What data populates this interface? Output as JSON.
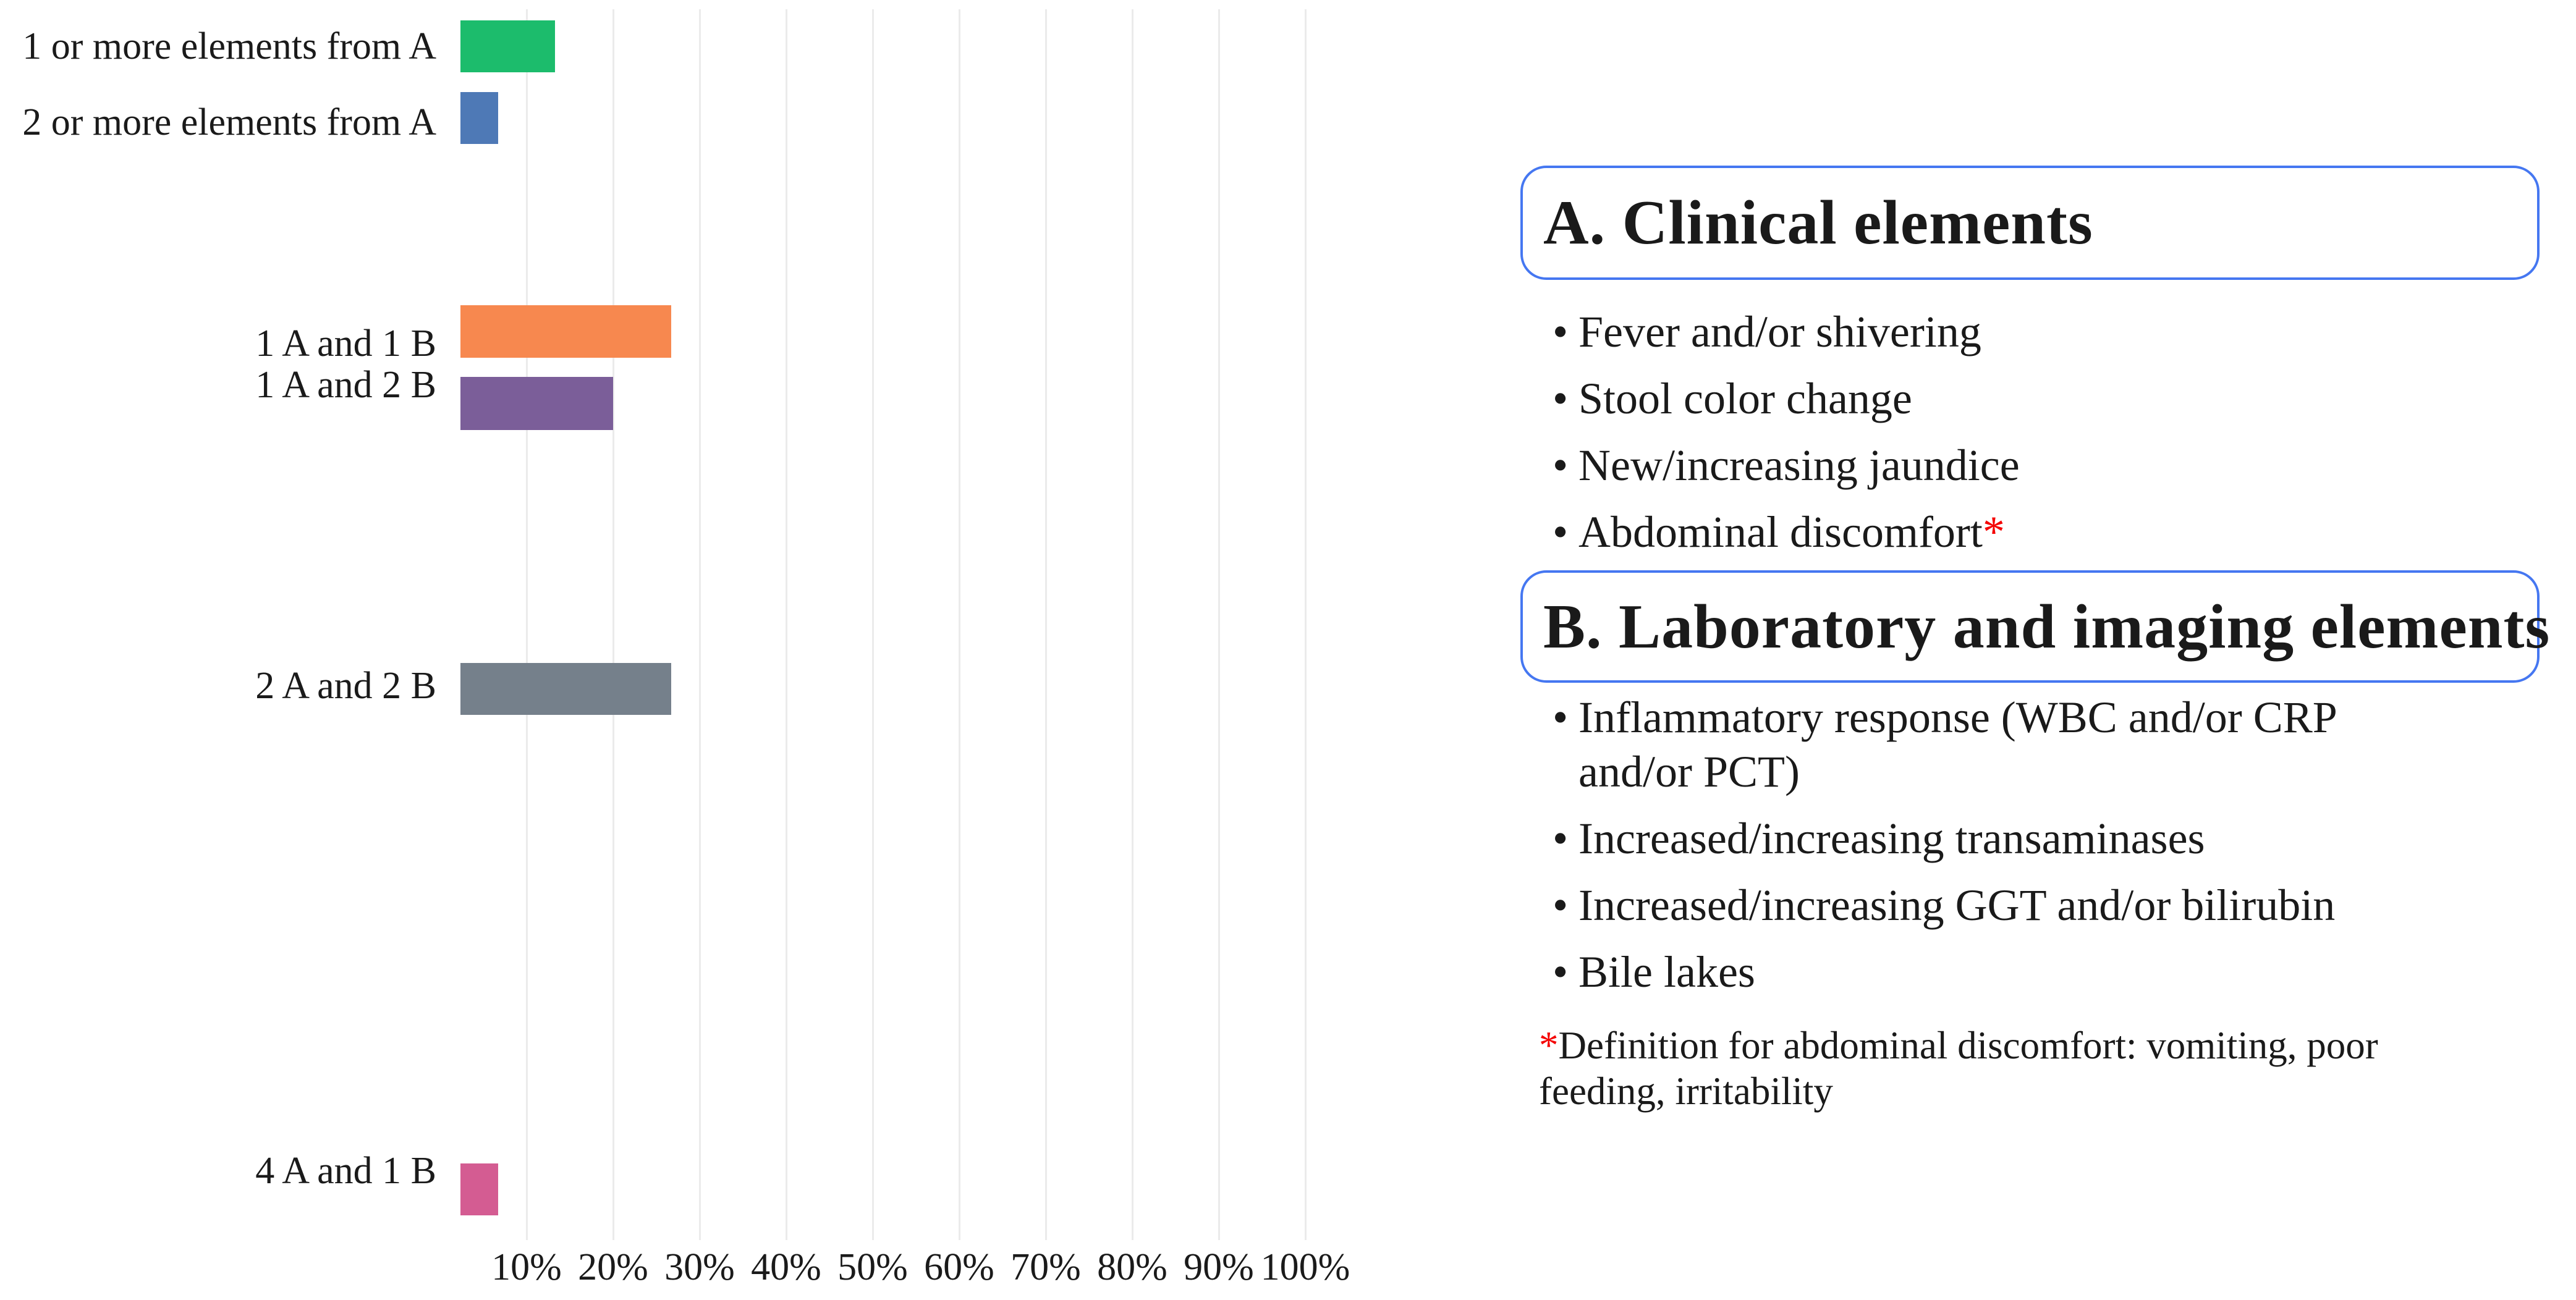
{
  "chart_data": {
    "type": "bar",
    "orientation": "horizontal",
    "title": "",
    "categories": [
      "1 or more elements from A",
      "2 or more elements from A",
      "1 A and 1 B",
      "1 A and 2 B",
      "2 A and 2 B",
      "4 A and 1 B"
    ],
    "values": [
      13.3,
      6.7,
      26.7,
      20.0,
      26.7,
      6.7
    ],
    "value_unit": "%",
    "series_note": "single series; bar lengths read against percent axis, values estimated from gridlines; bars sum to ~100%",
    "bar_colors": [
      "#1CBC6C",
      "#4E79B6",
      "#F7884F",
      "#7B5E99",
      "#75808B",
      "#D45C92"
    ],
    "x_tick_labels": [
      "10%",
      "20%",
      "30%",
      "40%",
      "50%",
      "60%",
      "70%",
      "80%",
      "90%",
      "100%"
    ],
    "x_tick_values": [
      10,
      20,
      30,
      40,
      50,
      60,
      70,
      80,
      90,
      100
    ],
    "xlim": [
      0,
      103
    ],
    "xlabel": "",
    "ylabel": "",
    "grid": "vertical",
    "gridline_color": "#EBEBEB",
    "legend": "none"
  },
  "panel": {
    "box_a": {
      "title": "A. Clinical elements",
      "items": [
        {
          "text": "Fever and/or shivering"
        },
        {
          "text": "Stool color change"
        },
        {
          "text": "New/increasing jaundice"
        },
        {
          "text": "Abdominal discomfort",
          "marker": "*"
        }
      ]
    },
    "box_b": {
      "title": "B. Laboratory and imaging elements",
      "items": [
        {
          "text": "Inflammatory response (WBC and/or CRP and/or PCT)",
          "lines": [
            "Inflammatory response (WBC and/or CRP",
            "and/or PCT)"
          ]
        },
        {
          "text": "Increased/increasing transaminases"
        },
        {
          "text": "Increased/increasing GGT and/or bilirubin"
        },
        {
          "text": "Bile lakes"
        }
      ]
    },
    "footnote": {
      "marker": "*",
      "text": "Definition for abdominal discomfort: vomiting, poor feeding, irritability",
      "lines": [
        "Definition for abdominal discomfort: vomiting, poor",
        "feeding, irritability"
      ]
    }
  },
  "colors": {
    "bullet": "#1a1a1a",
    "text": "#1a1a1a",
    "box_border": "#4577F1",
    "asterisk_red": "#F40000",
    "gridline": "#EBEBEB",
    "background": "#ffffff"
  }
}
